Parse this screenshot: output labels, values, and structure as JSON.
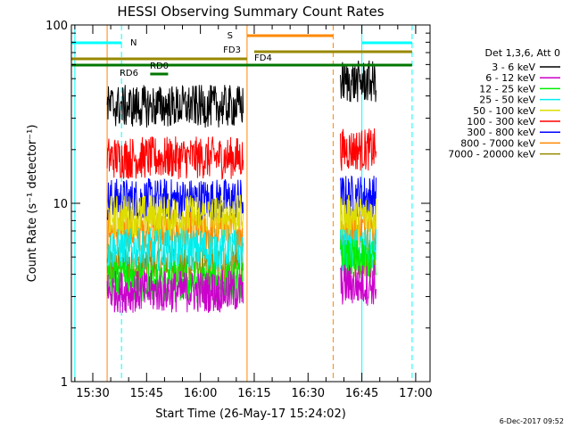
{
  "chart_data": {
    "type": "line",
    "title": "HESSI Observing Summary Count Rates",
    "xlabel": "Start Time (26-May-17 15:24:02)",
    "ylabel": "Count Rate (s⁻¹ detector⁻¹)",
    "xlim": [
      "15:24:02",
      "17:04:00"
    ],
    "ylim": [
      1,
      100
    ],
    "yscale": "log",
    "x_ticks": [
      "15:30",
      "15:45",
      "16:00",
      "16:15",
      "16:30",
      "16:45",
      "17:00"
    ],
    "y_ticks": [
      "1",
      "10",
      "100"
    ],
    "legend_title": "Det 1,3,6, Att 0",
    "legend_position": "right",
    "series": [
      {
        "name": "3 - 6 keV",
        "color": "#000000",
        "segments": [
          {
            "x": [
              "15:34",
              "16:12"
            ],
            "mean": 35
          },
          {
            "x": [
              "16:39",
              "16:49"
            ],
            "mean": 48
          }
        ]
      },
      {
        "name": "6 - 12 keV",
        "color": "#cc00cc",
        "segments": [
          {
            "x": [
              "15:34",
              "16:12"
            ],
            "mean": 3.2
          },
          {
            "x": [
              "16:39",
              "16:49"
            ],
            "mean": 3.5
          }
        ]
      },
      {
        "name": "12 - 25 keV",
        "color": "#00ee00",
        "segments": [
          {
            "x": [
              "15:34",
              "16:12"
            ],
            "mean": 3.6
          },
          {
            "x": [
              "16:39",
              "16:49"
            ],
            "mean": 4.8
          }
        ]
      },
      {
        "name": "25 - 50 keV",
        "color": "#00eeee",
        "segments": [
          {
            "x": [
              "15:34",
              "16:12"
            ],
            "mean": 5.5
          },
          {
            "x": [
              "16:39",
              "16:49"
            ],
            "mean": 5.5
          }
        ]
      },
      {
        "name": "50 - 100 keV",
        "color": "#dddd00",
        "segments": [
          {
            "x": [
              "15:34",
              "16:12"
            ],
            "mean": 8.5
          },
          {
            "x": [
              "16:39",
              "16:49"
            ],
            "mean": 8.5
          }
        ]
      },
      {
        "name": "100 - 300 keV",
        "color": "#ff0000",
        "segments": [
          {
            "x": [
              "15:34",
              "16:12"
            ],
            "mean": 18
          },
          {
            "x": [
              "16:39",
              "16:49"
            ],
            "mean": 20
          }
        ]
      },
      {
        "name": "300 - 800 keV",
        "color": "#0000ff",
        "segments": [
          {
            "x": [
              "15:34",
              "16:12"
            ],
            "mean": 10.5
          },
          {
            "x": [
              "16:39",
              "16:49"
            ],
            "mean": 11
          }
        ]
      },
      {
        "name": "800 - 7000 keV",
        "color": "#ff8800",
        "segments": [
          {
            "x": [
              "15:34",
              "16:12"
            ],
            "mean": 7
          },
          {
            "x": [
              "16:39",
              "16:49"
            ],
            "mean": 7.2
          }
        ]
      },
      {
        "name": "7000 - 20000 keV",
        "color": "#998800",
        "segments": [
          {
            "x": [
              "15:34",
              "16:12"
            ],
            "mean": 4.5
          },
          {
            "x": [
              "16:39",
              "16:49"
            ],
            "mean": 5
          }
        ]
      }
    ],
    "flag_bars": [
      {
        "label": "N",
        "color": "#00ffff",
        "ranges": [
          [
            "15:24",
            "15:38"
          ],
          [
            "16:45",
            "16:59"
          ]
        ]
      },
      {
        "label": "S",
        "color": "#ff8800",
        "ranges": [
          [
            "16:13",
            "16:37"
          ]
        ]
      },
      {
        "label": "FD3",
        "color": "#998800",
        "ranges": [
          [
            "15:24",
            "16:13"
          ]
        ]
      },
      {
        "label": "FD4",
        "color": "#998800",
        "ranges": [
          [
            "16:15",
            "16:59"
          ]
        ]
      },
      {
        "label": "RD0",
        "color": "#007700",
        "ranges": [
          [
            "15:24",
            "16:59"
          ]
        ]
      },
      {
        "label": "RD6",
        "color": "#007700",
        "ranges": [
          [
            "15:46",
            "15:51"
          ]
        ]
      }
    ],
    "vertical_lines": [
      {
        "x": "15:25",
        "color": "#00ffff",
        "style": "solid"
      },
      {
        "x": "15:34",
        "color": "#ff8800",
        "style": "solid"
      },
      {
        "x": "15:38",
        "color": "#00ffff",
        "style": "dashed"
      },
      {
        "x": "16:13",
        "color": "#ff8800",
        "style": "solid"
      },
      {
        "x": "16:37",
        "color": "#ff8800",
        "style": "dashed"
      },
      {
        "x": "16:45",
        "color": "#00ffff",
        "style": "solid"
      },
      {
        "x": "16:59",
        "color": "#00ffff",
        "style": "dashed"
      }
    ],
    "timestamp": "6-Dec-2017 09:52"
  }
}
